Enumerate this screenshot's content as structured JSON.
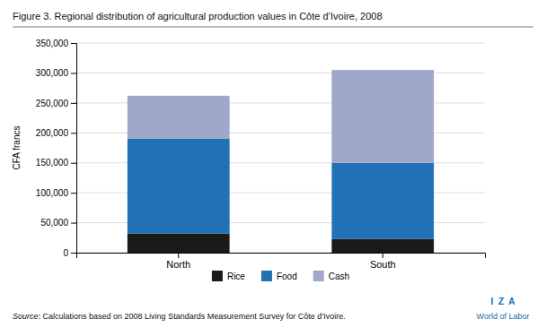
{
  "chart_data": {
    "type": "bar",
    "stacked": true,
    "title": "Figure 3. Regional distribution of agricultural production values in Côte d’Ivoire, 2008",
    "ylabel": "CFA francs",
    "categories": [
      "North",
      "South"
    ],
    "series": [
      {
        "name": "Rice",
        "color": "#1a1a1a",
        "values": [
          32000,
          23000
        ]
      },
      {
        "name": "Food",
        "color": "#2171b5",
        "values": [
          158000,
          127000
        ]
      },
      {
        "name": "Cash",
        "color": "#9fa8c9",
        "values": [
          72000,
          155000
        ]
      }
    ],
    "ylim": [
      0,
      350000
    ],
    "yticks": [
      0,
      {
        "value": 50000,
        "label": "50,000"
      },
      {
        "value": 100000,
        "label": "100,000"
      },
      {
        "value": 150000,
        "label": "150,000"
      },
      {
        "value": 200000,
        "label": "200,000"
      },
      {
        "value": 250000,
        "label": "250,000"
      },
      {
        "value": 300000,
        "label": "300,000"
      },
      {
        "value": 350000,
        "label": "350,000"
      }
    ],
    "grid": true,
    "legend": "bottom",
    "annotations": [
      "Source",
      ": Calculations based on 2008 Living Standards Measurement Survey for Côte d’Ivoire.",
      "I  Z  A",
      "World of Labor"
    ]
  }
}
